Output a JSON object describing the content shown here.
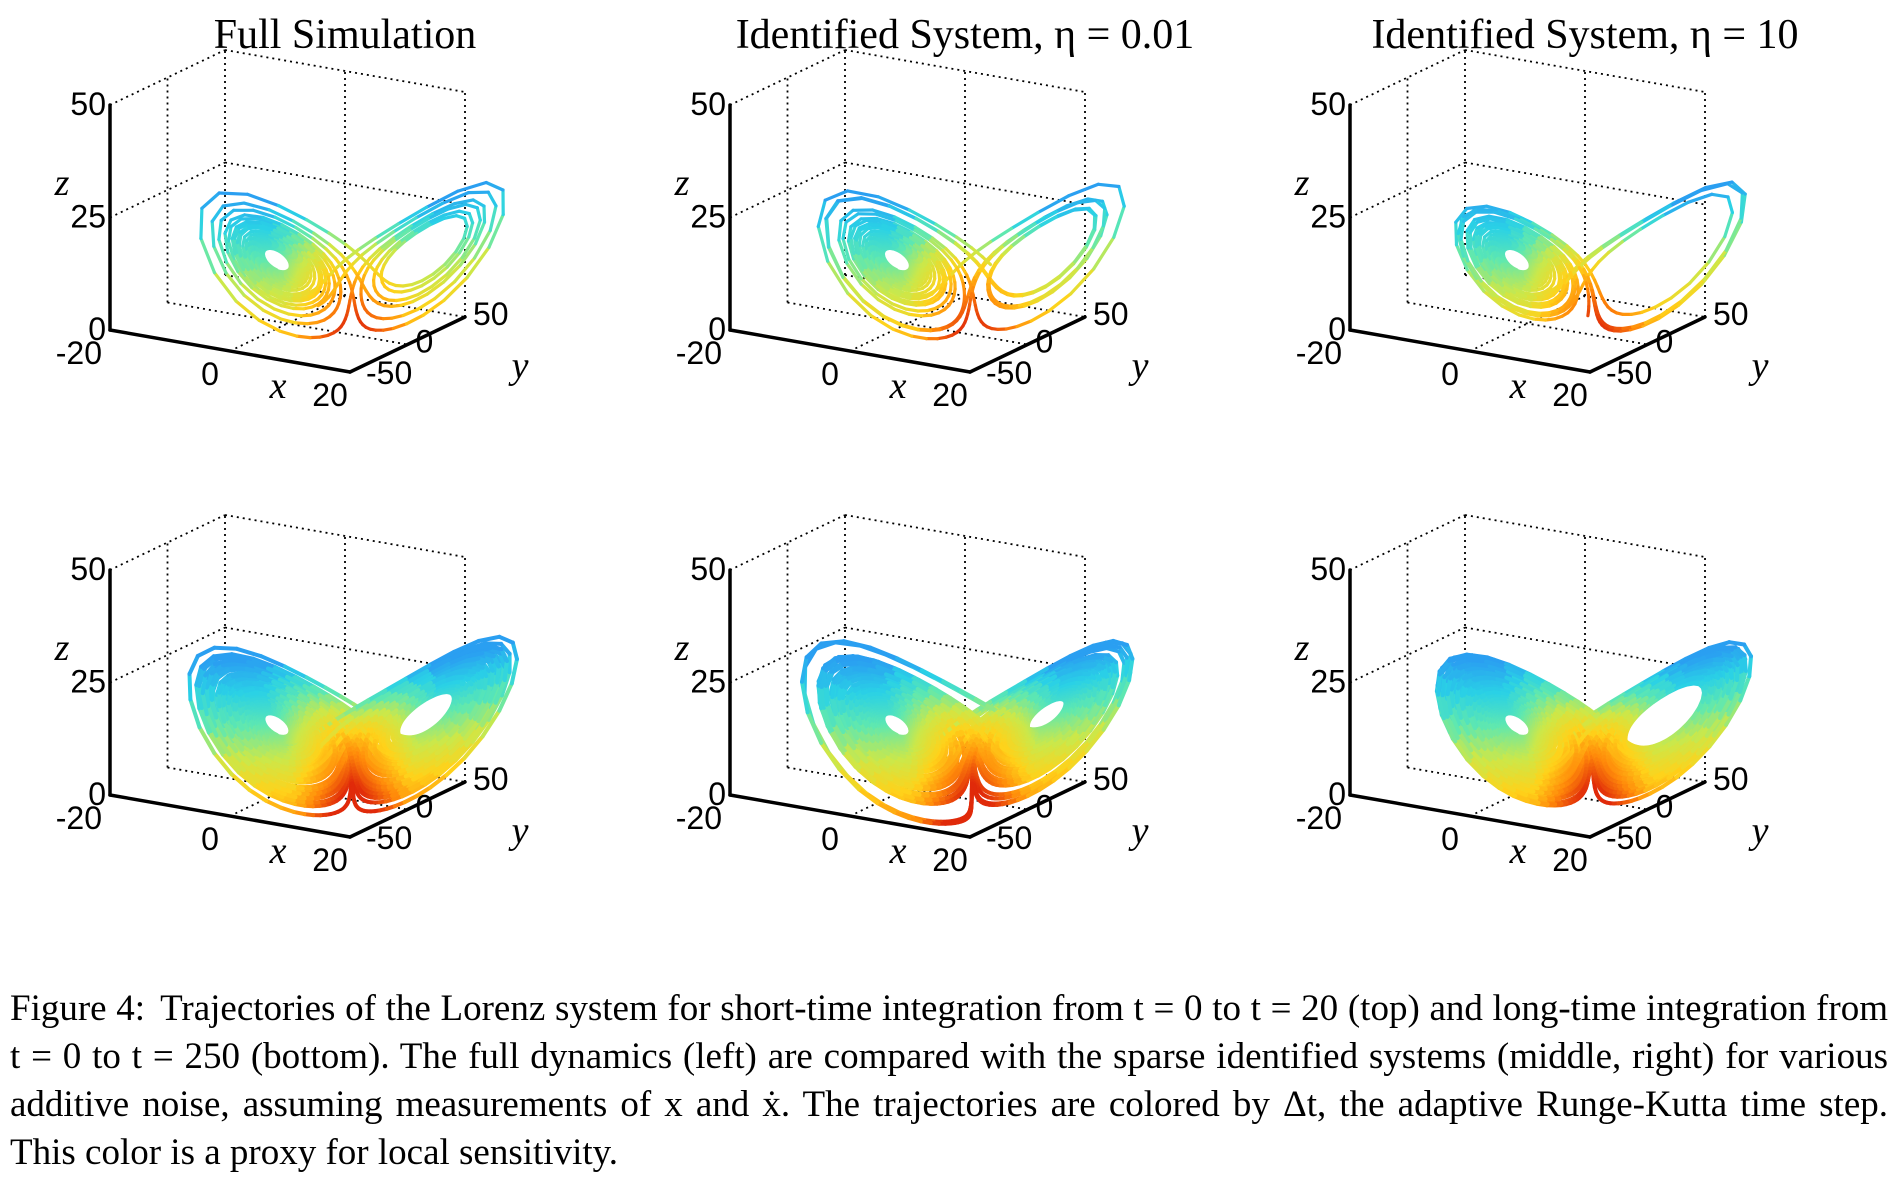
{
  "figure": {
    "colormap": [
      "#1a4fe0",
      "#2a9cf2",
      "#2ad1e6",
      "#5fe8b0",
      "#cbe84a",
      "#ffd21a",
      "#ff8a0a",
      "#e02a0a"
    ],
    "tick_labels": {
      "z": [
        "50",
        "25",
        "0"
      ],
      "x": [
        "-20",
        "0",
        "20"
      ],
      "y": [
        "50",
        "0",
        "-50"
      ]
    },
    "axis_labels": {
      "x": "x",
      "y": "y",
      "z": "z"
    },
    "panels": [
      {
        "id": "top-left",
        "title": "Full Simulation",
        "integration": "short"
      },
      {
        "id": "top-middle",
        "title": "Identified System, η = 0.01",
        "integration": "short"
      },
      {
        "id": "top-right",
        "title": "Identified System, η = 10",
        "integration": "short"
      },
      {
        "id": "bottom-left",
        "title": "",
        "integration": "long"
      },
      {
        "id": "bottom-middle",
        "title": "",
        "integration": "long"
      },
      {
        "id": "bottom-right",
        "title": "",
        "integration": "long"
      }
    ]
  },
  "caption": {
    "label": "Figure 4:",
    "text": "Trajectories of the Lorenz system for short-time integration from t = 0 to t = 20 (top) and long-time integration from t = 0 to t = 250 (bottom). The full dynamics (left) are compared with the sparse identified systems (middle, right) for various additive noise, assuming measurements of x and ẋ. The trajectories are colored by Δt, the adaptive Runge-Kutta time step. This color is a proxy for local sensitivity."
  }
}
